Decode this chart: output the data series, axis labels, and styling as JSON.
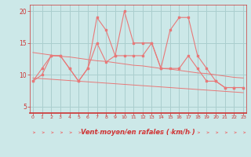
{
  "xlabel": "Vent moyen/en rafales ( km/h )",
  "bg_color": "#cce8e8",
  "grid_color": "#aacece",
  "line_color": "#e87878",
  "x": [
    0,
    1,
    2,
    3,
    4,
    5,
    6,
    7,
    8,
    9,
    10,
    11,
    12,
    13,
    14,
    15,
    16,
    17,
    18,
    19,
    20,
    21,
    22,
    23
  ],
  "series_rafales": [
    9,
    11,
    13,
    13,
    11,
    9,
    11,
    19,
    17,
    13,
    20,
    15,
    15,
    15,
    11,
    17,
    19,
    19,
    13,
    11,
    9,
    8,
    8,
    8
  ],
  "series_moyen": [
    9,
    10,
    13,
    13,
    11,
    9,
    11,
    15,
    12,
    13,
    13,
    13,
    13,
    15,
    11,
    11,
    11,
    13,
    11,
    9,
    9,
    8,
    8,
    8
  ],
  "series_trend1": [
    13.5,
    13.3,
    13.1,
    12.9,
    12.8,
    12.6,
    12.4,
    12.2,
    12.1,
    11.9,
    11.7,
    11.5,
    11.4,
    11.2,
    11.0,
    10.9,
    10.7,
    10.5,
    10.3,
    10.2,
    10.0,
    9.8,
    9.6,
    9.5
  ],
  "series_trend2": [
    9.5,
    9.4,
    9.3,
    9.2,
    9.1,
    9.0,
    8.9,
    8.8,
    8.7,
    8.6,
    8.5,
    8.4,
    8.3,
    8.2,
    8.1,
    8.0,
    7.9,
    7.8,
    7.7,
    7.6,
    7.5,
    7.4,
    7.3,
    7.2
  ],
  "ylim": [
    4,
    21
  ],
  "yticks": [
    5,
    10,
    15,
    20
  ],
  "xticks": [
    0,
    1,
    2,
    3,
    4,
    5,
    6,
    7,
    8,
    9,
    10,
    11,
    12,
    13,
    14,
    15,
    16,
    17,
    18,
    19,
    20,
    21,
    22,
    23
  ]
}
